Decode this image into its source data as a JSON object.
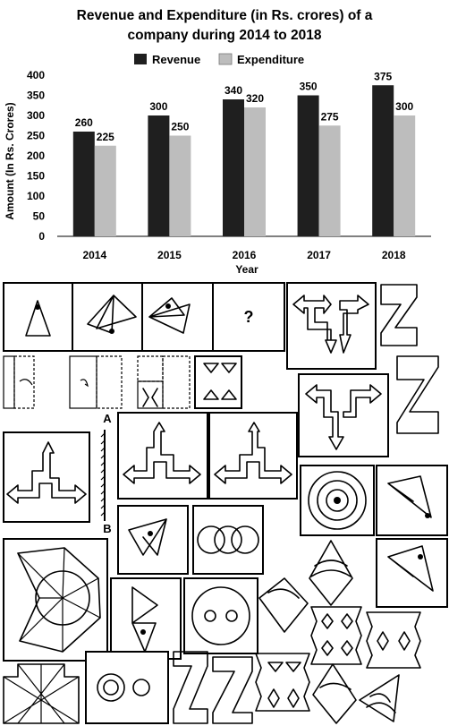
{
  "chart_data": {
    "type": "bar",
    "title": "Revenue and Expenditure (in Rs. crores) of a company during 2014 to 2018",
    "title_lines": [
      "Revenue and Expenditure (in Rs. crores) of a",
      "company during 2014 to 2018"
    ],
    "xlabel": "Year",
    "ylabel": "Amount (In Rs. Crores)",
    "categories": [
      "2014",
      "2015",
      "2016",
      "2017",
      "2018"
    ],
    "series": [
      {
        "name": "Revenue",
        "color": "#1f1f1f",
        "values": [
          260,
          300,
          340,
          350,
          375
        ]
      },
      {
        "name": "Expenditure",
        "color": "#bdbdbd",
        "values": [
          225,
          250,
          320,
          275,
          300
        ]
      }
    ],
    "ylim": [
      0,
      400
    ],
    "yticks": [
      "0",
      "50",
      "100",
      "150",
      "200",
      "250",
      "300",
      "350",
      "400"
    ],
    "legend": "top-center",
    "grid": false,
    "data_labels": true
  },
  "puzzles": {
    "question_mark": "?",
    "mirror_label_top": "A",
    "mirror_label_bottom": "B"
  }
}
